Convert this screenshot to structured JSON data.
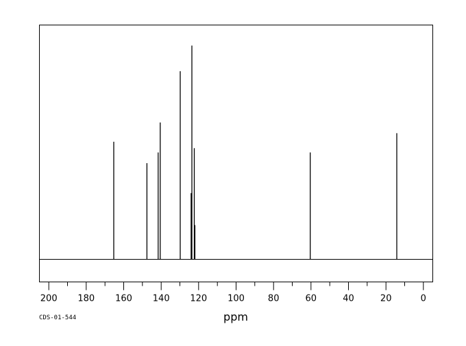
{
  "chart_data": {
    "type": "line",
    "title": "",
    "xlabel": "ppm",
    "ylabel": "",
    "xlim": [
      205,
      -5
    ],
    "x_reversed": true,
    "grid": false,
    "ticks": [
      "200",
      "180",
      "160",
      "140",
      "120",
      "100",
      "80",
      "60",
      "40",
      "20",
      "0"
    ],
    "tick_values": [
      200,
      180,
      160,
      140,
      120,
      100,
      80,
      60,
      40,
      20,
      0
    ],
    "peaks": [
      {
        "x": 165.3,
        "height": 0.55
      },
      {
        "x": 147.6,
        "height": 0.45
      },
      {
        "x": 141.6,
        "height": 0.5
      },
      {
        "x": 140.5,
        "height": 0.64
      },
      {
        "x": 129.8,
        "height": 0.88
      },
      {
        "x": 124.0,
        "height": 0.31
      },
      {
        "x": 123.6,
        "height": 1.0
      },
      {
        "x": 122.3,
        "height": 0.52
      },
      {
        "x": 122.0,
        "height": 0.16
      },
      {
        "x": 60.4,
        "height": 0.5
      },
      {
        "x": 14.2,
        "height": 0.59
      }
    ]
  },
  "footer": {
    "code": "CDS-01-544"
  }
}
